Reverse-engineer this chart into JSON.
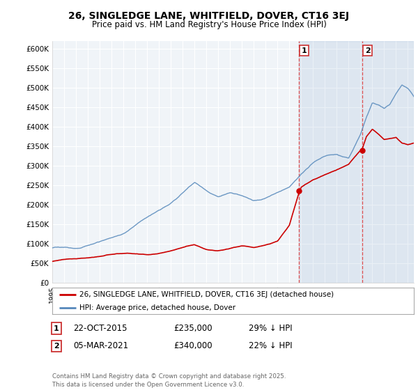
{
  "title": "26, SINGLEDGE LANE, WHITFIELD, DOVER, CT16 3EJ",
  "subtitle": "Price paid vs. HM Land Registry's House Price Index (HPI)",
  "legend_label_red": "26, SINGLEDGE LANE, WHITFIELD, DOVER, CT16 3EJ (detached house)",
  "legend_label_blue": "HPI: Average price, detached house, Dover",
  "annotation1_label": "1",
  "annotation1_date": "22-OCT-2015",
  "annotation1_price": "£235,000",
  "annotation1_hpi": "29% ↓ HPI",
  "annotation2_label": "2",
  "annotation2_date": "05-MAR-2021",
  "annotation2_price": "£340,000",
  "annotation2_hpi": "22% ↓ HPI",
  "footer": "Contains HM Land Registry data © Crown copyright and database right 2025.\nThis data is licensed under the Open Government Licence v3.0.",
  "ylim": [
    0,
    620000
  ],
  "yticks": [
    0,
    50000,
    100000,
    150000,
    200000,
    250000,
    300000,
    350000,
    400000,
    450000,
    500000,
    550000,
    600000
  ],
  "color_red": "#cc0000",
  "color_blue": "#5588bb",
  "color_vline1": "#dd3333",
  "color_vline2": "#dd3333",
  "bg_color": "#ffffff",
  "plot_bg_color": "#f0f4f8",
  "grid_color": "#ffffff",
  "marker1_x": 2015.81,
  "marker1_y": 235000,
  "marker2_x": 2021.17,
  "marker2_y": 340000,
  "vline1_x": 2015.81,
  "vline2_x": 2021.17,
  "xmin": 1995,
  "xmax": 2025.5,
  "shade_from": 2015.81,
  "shade_to": 2025.5
}
